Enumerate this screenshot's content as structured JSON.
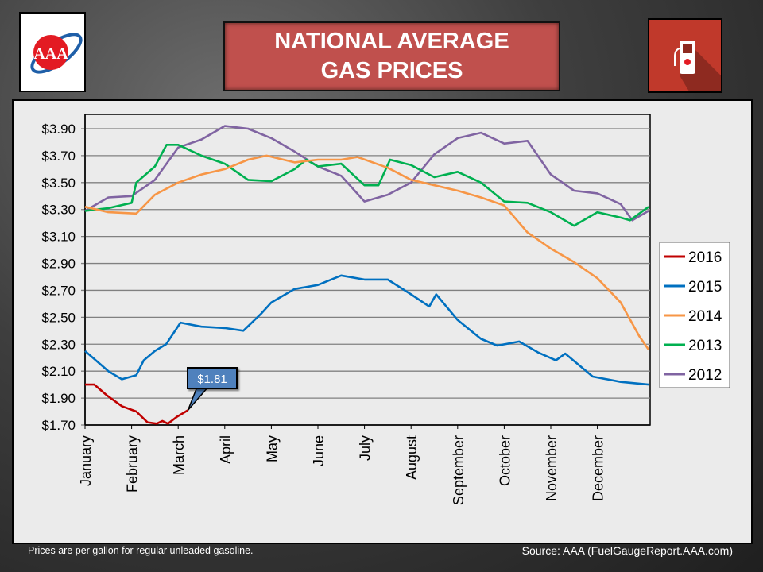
{
  "header": {
    "title_line1": "NATIONAL AVERAGE",
    "title_line2": "GAS PRICES",
    "logo": "AAA",
    "icon": "gas-pump-icon"
  },
  "footer": {
    "note": "Prices are per gallon for regular unleaded gasoline.",
    "source": "Source:  AAA (FuelGaugeReport.AAA.com)"
  },
  "chart_data": {
    "type": "line",
    "title": "NATIONAL AVERAGE GAS PRICES",
    "xlabel": "",
    "ylabel": "",
    "ylim": [
      1.7,
      3.9
    ],
    "xlim": [
      0,
      12.1
    ],
    "x_unit": "months since Jan 1",
    "grid": true,
    "legend_position": "right",
    "yticks": [
      "$3.90",
      "$3.70",
      "$3.50",
      "$3.30",
      "$3.10",
      "$2.90",
      "$2.70",
      "$2.50",
      "$2.30",
      "$2.10",
      "$1.90",
      "$1.70"
    ],
    "ytick_values": [
      3.9,
      3.7,
      3.5,
      3.3,
      3.1,
      2.9,
      2.7,
      2.5,
      2.3,
      2.1,
      1.9,
      1.7
    ],
    "xticks": [
      "January",
      "February",
      "March",
      "April",
      "May",
      "June",
      "July",
      "August",
      "September",
      "October",
      "November",
      "December"
    ],
    "annotation": {
      "text": "$1.81",
      "series": "2016",
      "x": 2.21,
      "y": 1.81
    },
    "series": [
      {
        "name": "2016",
        "color": "#c00000",
        "points": [
          [
            0,
            2.0
          ],
          [
            0.2,
            2.0
          ],
          [
            0.47,
            1.92
          ],
          [
            0.79,
            1.84
          ],
          [
            1.1,
            1.8
          ],
          [
            1.34,
            1.72
          ],
          [
            1.54,
            1.71
          ],
          [
            1.66,
            1.73
          ],
          [
            1.78,
            1.71
          ],
          [
            1.97,
            1.76
          ],
          [
            2.21,
            1.81
          ]
        ]
      },
      {
        "name": "2015",
        "color": "#0070c0",
        "points": [
          [
            0,
            2.25
          ],
          [
            0.5,
            2.1
          ],
          [
            0.79,
            2.04
          ],
          [
            1.1,
            2.07
          ],
          [
            1.26,
            2.18
          ],
          [
            1.5,
            2.25
          ],
          [
            1.74,
            2.3
          ],
          [
            2.05,
            2.46
          ],
          [
            2.5,
            2.43
          ],
          [
            3,
            2.42
          ],
          [
            3.4,
            2.4
          ],
          [
            3.79,
            2.53
          ],
          [
            4,
            2.61
          ],
          [
            4.5,
            2.71
          ],
          [
            5,
            2.74
          ],
          [
            5.5,
            2.81
          ],
          [
            6,
            2.78
          ],
          [
            6.5,
            2.78
          ],
          [
            7,
            2.67
          ],
          [
            7.39,
            2.58
          ],
          [
            7.54,
            2.67
          ],
          [
            8,
            2.48
          ],
          [
            8.5,
            2.34
          ],
          [
            8.85,
            2.29
          ],
          [
            9.32,
            2.32
          ],
          [
            9.72,
            2.24
          ],
          [
            10.11,
            2.18
          ],
          [
            10.31,
            2.23
          ],
          [
            10.9,
            2.06
          ],
          [
            11.5,
            2.02
          ],
          [
            12.1,
            2.0
          ]
        ]
      },
      {
        "name": "2014",
        "color": "#f79646",
        "points": [
          [
            0,
            3.32
          ],
          [
            0.5,
            3.28
          ],
          [
            1.1,
            3.27
          ],
          [
            1.5,
            3.41
          ],
          [
            2,
            3.5
          ],
          [
            2.5,
            3.56
          ],
          [
            3,
            3.6
          ],
          [
            3.5,
            3.67
          ],
          [
            3.9,
            3.7
          ],
          [
            4.5,
            3.65
          ],
          [
            5,
            3.67
          ],
          [
            5.5,
            3.67
          ],
          [
            5.85,
            3.69
          ],
          [
            6.5,
            3.61
          ],
          [
            7,
            3.52
          ],
          [
            7.5,
            3.48
          ],
          [
            8,
            3.44
          ],
          [
            8.5,
            3.39
          ],
          [
            9,
            3.33
          ],
          [
            9.5,
            3.13
          ],
          [
            10,
            3.01
          ],
          [
            10.5,
            2.91
          ],
          [
            11,
            2.79
          ],
          [
            11.5,
            2.61
          ],
          [
            11.9,
            2.36
          ],
          [
            12.1,
            2.26
          ]
        ]
      },
      {
        "name": "2013",
        "color": "#00b050",
        "points": [
          [
            0,
            3.29
          ],
          [
            0.5,
            3.31
          ],
          [
            1,
            3.35
          ],
          [
            1.1,
            3.5
          ],
          [
            1.5,
            3.62
          ],
          [
            1.75,
            3.78
          ],
          [
            2,
            3.78
          ],
          [
            2.5,
            3.7
          ],
          [
            3,
            3.64
          ],
          [
            3.5,
            3.52
          ],
          [
            4,
            3.51
          ],
          [
            4.5,
            3.6
          ],
          [
            4.75,
            3.67
          ],
          [
            5,
            3.62
          ],
          [
            5.5,
            3.64
          ],
          [
            6,
            3.48
          ],
          [
            6.3,
            3.48
          ],
          [
            6.55,
            3.67
          ],
          [
            7,
            3.63
          ],
          [
            7.5,
            3.54
          ],
          [
            8,
            3.58
          ],
          [
            8.5,
            3.5
          ],
          [
            9,
            3.36
          ],
          [
            9.5,
            3.35
          ],
          [
            10,
            3.28
          ],
          [
            10.5,
            3.18
          ],
          [
            11,
            3.28
          ],
          [
            11.5,
            3.24
          ],
          [
            11.7,
            3.22
          ],
          [
            12.1,
            3.32
          ]
        ]
      },
      {
        "name": "2012",
        "color": "#8064a2",
        "points": [
          [
            0,
            3.29
          ],
          [
            0.5,
            3.39
          ],
          [
            1,
            3.4
          ],
          [
            1.5,
            3.52
          ],
          [
            2,
            3.76
          ],
          [
            2.5,
            3.82
          ],
          [
            3,
            3.92
          ],
          [
            3.5,
            3.9
          ],
          [
            4,
            3.83
          ],
          [
            4.5,
            3.73
          ],
          [
            5,
            3.62
          ],
          [
            5.5,
            3.55
          ],
          [
            6,
            3.36
          ],
          [
            6.5,
            3.41
          ],
          [
            7,
            3.5
          ],
          [
            7.5,
            3.71
          ],
          [
            8,
            3.83
          ],
          [
            8.5,
            3.87
          ],
          [
            9,
            3.79
          ],
          [
            9.5,
            3.81
          ],
          [
            10,
            3.56
          ],
          [
            10.5,
            3.44
          ],
          [
            11,
            3.42
          ],
          [
            11.5,
            3.34
          ],
          [
            11.75,
            3.22
          ],
          [
            12.1,
            3.29
          ]
        ]
      }
    ]
  }
}
